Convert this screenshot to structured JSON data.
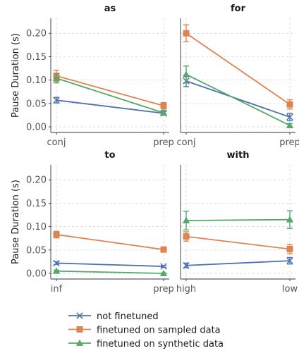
{
  "chart_data": {
    "type": "line",
    "ylabel": "Pause Duration (s)",
    "ylim": [
      -0.012,
      0.232
    ],
    "yticks": [
      "0.00",
      "0.05",
      "0.10",
      "0.15",
      "0.20"
    ],
    "grid": true,
    "legend_position": "bottom-center",
    "series_styles": [
      {
        "name": "not finetuned",
        "color": "#4c72b0",
        "marker": "x"
      },
      {
        "name": "finetuned on sampled data",
        "color": "#dd8452",
        "marker": "square"
      },
      {
        "name": "finetuned on synthetic data",
        "color": "#55a868",
        "marker": "triangle"
      }
    ],
    "panels": [
      {
        "title": "as",
        "categories": [
          "conj",
          "prep"
        ],
        "series": [
          {
            "name": "not finetuned",
            "values": [
              0.057,
              0.029
            ],
            "errors": [
              0.006,
              0.004
            ]
          },
          {
            "name": "finetuned on sampled data",
            "values": [
              0.109,
              0.045
            ],
            "errors": [
              0.012,
              0.007
            ]
          },
          {
            "name": "finetuned on synthetic data",
            "values": [
              0.104,
              0.03
            ],
            "errors": [
              0.01,
              0.005
            ]
          }
        ]
      },
      {
        "title": "for",
        "categories": [
          "conj",
          "prep"
        ],
        "series": [
          {
            "name": "not finetuned",
            "values": [
              0.098,
              0.021
            ],
            "errors": [
              0.012,
              0.008
            ]
          },
          {
            "name": "finetuned on sampled data",
            "values": [
              0.2,
              0.048
            ],
            "errors": [
              0.018,
              0.01
            ]
          },
          {
            "name": "finetuned on synthetic data",
            "values": [
              0.112,
              0.003
            ],
            "errors": [
              0.018,
              0.004
            ]
          }
        ]
      },
      {
        "title": "to",
        "categories": [
          "inf",
          "prep"
        ],
        "series": [
          {
            "name": "not finetuned",
            "values": [
              0.022,
              0.015
            ],
            "errors": [
              0.003,
              0.002
            ]
          },
          {
            "name": "finetuned on sampled data",
            "values": [
              0.083,
              0.051
            ],
            "errors": [
              0.007,
              0.004
            ]
          },
          {
            "name": "finetuned on synthetic data",
            "values": [
              0.005,
              0.0
            ],
            "errors": [
              0.002,
              0.001
            ]
          }
        ]
      },
      {
        "title": "with",
        "categories": [
          "high",
          "low"
        ],
        "series": [
          {
            "name": "not finetuned",
            "values": [
              0.017,
              0.027
            ],
            "errors": [
              0.005,
              0.007
            ]
          },
          {
            "name": "finetuned on sampled data",
            "values": [
              0.079,
              0.052
            ],
            "errors": [
              0.01,
              0.01
            ]
          },
          {
            "name": "finetuned on synthetic data",
            "values": [
              0.113,
              0.115
            ],
            "errors": [
              0.02,
              0.019
            ]
          }
        ]
      }
    ]
  }
}
